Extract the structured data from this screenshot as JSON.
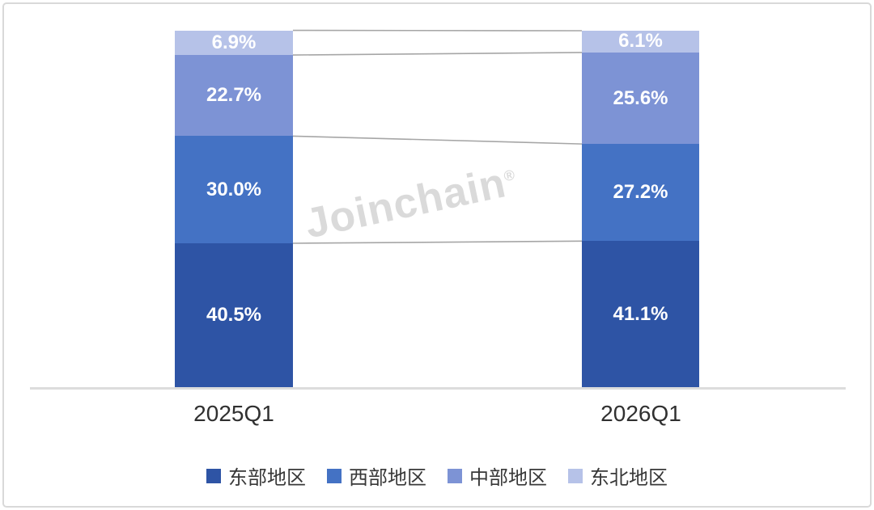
{
  "watermark": {
    "text": "Joinchain",
    "registered": "®"
  },
  "chart_data": {
    "type": "bar",
    "stacked": true,
    "percent_stacked": true,
    "categories": [
      "2025Q1",
      "2026Q1"
    ],
    "series": [
      {
        "name": "东部地区",
        "color": "#2e54a5",
        "values": [
          40.5,
          41.1
        ]
      },
      {
        "name": "西部地区",
        "color": "#4472c4",
        "values": [
          30.0,
          27.2
        ]
      },
      {
        "name": "中部地区",
        "color": "#7d93d5",
        "values": [
          22.7,
          25.6
        ]
      },
      {
        "name": "东北地区",
        "color": "#b6c2e8",
        "values": [
          6.9,
          6.1
        ]
      }
    ],
    "value_suffix": "%",
    "data_label_color": "#ffffff",
    "connector_line_color": "#a6a6a6",
    "axis_line_color": "#dcdcdc",
    "tick_label_color": "#303030",
    "legend_position": "bottom",
    "grid": false,
    "ylim": [
      0,
      100
    ]
  }
}
